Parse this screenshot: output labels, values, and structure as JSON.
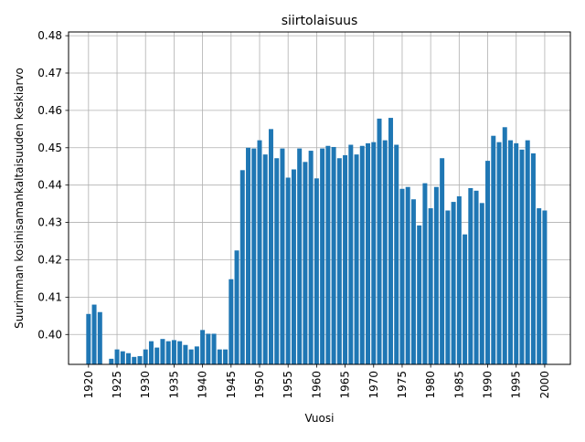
{
  "chart_data": {
    "type": "bar",
    "title": "siirtolaisuus",
    "xlabel": "Vuosi",
    "ylabel": "Suurimman kosinisamankaltaisuuden keskiarvo",
    "xlim": [
      1916.5,
      2004.5
    ],
    "ylim": [
      0.392,
      0.481
    ],
    "xticks": [
      "1920",
      "1925",
      "1930",
      "1935",
      "1940",
      "1945",
      "1950",
      "1955",
      "1960",
      "1965",
      "1970",
      "1975",
      "1980",
      "1985",
      "1990",
      "1995",
      "2000"
    ],
    "yticks": [
      "0.40",
      "0.41",
      "0.42",
      "0.43",
      "0.44",
      "0.45",
      "0.46",
      "0.47",
      "0.48"
    ],
    "grid": true,
    "bar_color": "#1f77b4",
    "x": [
      1920,
      1921,
      1922,
      1924,
      1925,
      1926,
      1927,
      1928,
      1929,
      1930,
      1931,
      1932,
      1933,
      1934,
      1935,
      1936,
      1937,
      1938,
      1939,
      1940,
      1941,
      1942,
      1943,
      1944,
      1945,
      1946,
      1947,
      1948,
      1949,
      1950,
      1951,
      1952,
      1953,
      1954,
      1955,
      1956,
      1957,
      1958,
      1959,
      1960,
      1961,
      1962,
      1963,
      1964,
      1965,
      1966,
      1967,
      1968,
      1969,
      1970,
      1971,
      1972,
      1973,
      1974,
      1975,
      1976,
      1977,
      1978,
      1979,
      1980,
      1981,
      1982,
      1983,
      1984,
      1985,
      1986,
      1987,
      1988,
      1989,
      1990,
      1991,
      1992,
      1993,
      1994,
      1995,
      1996,
      1997,
      1998,
      1999,
      2000
    ],
    "values": [
      0.4055,
      0.408,
      0.406,
      0.3935,
      0.396,
      0.3955,
      0.395,
      0.394,
      0.3942,
      0.396,
      0.3982,
      0.3965,
      0.3988,
      0.3982,
      0.3985,
      0.3982,
      0.3972,
      0.396,
      0.3968,
      0.4012,
      0.4002,
      0.4002,
      0.396,
      0.396,
      0.4148,
      0.4225,
      0.444,
      0.45,
      0.4498,
      0.452,
      0.4482,
      0.455,
      0.4472,
      0.4498,
      0.442,
      0.4442,
      0.4498,
      0.4462,
      0.4492,
      0.4418,
      0.4498,
      0.4505,
      0.4502,
      0.4472,
      0.448,
      0.4508,
      0.4482,
      0.4505,
      0.4512,
      0.4515,
      0.4578,
      0.452,
      0.458,
      0.4508,
      0.439,
      0.4395,
      0.4362,
      0.4292,
      0.4405,
      0.4338,
      0.4395,
      0.4472,
      0.4332,
      0.4355,
      0.437,
      0.4268,
      0.4392,
      0.4385,
      0.4352,
      0.4465,
      0.4532,
      0.4515,
      0.4555,
      0.452,
      0.4512,
      0.4495,
      0.452,
      0.4485,
      0.4338,
      0.4332
    ]
  }
}
